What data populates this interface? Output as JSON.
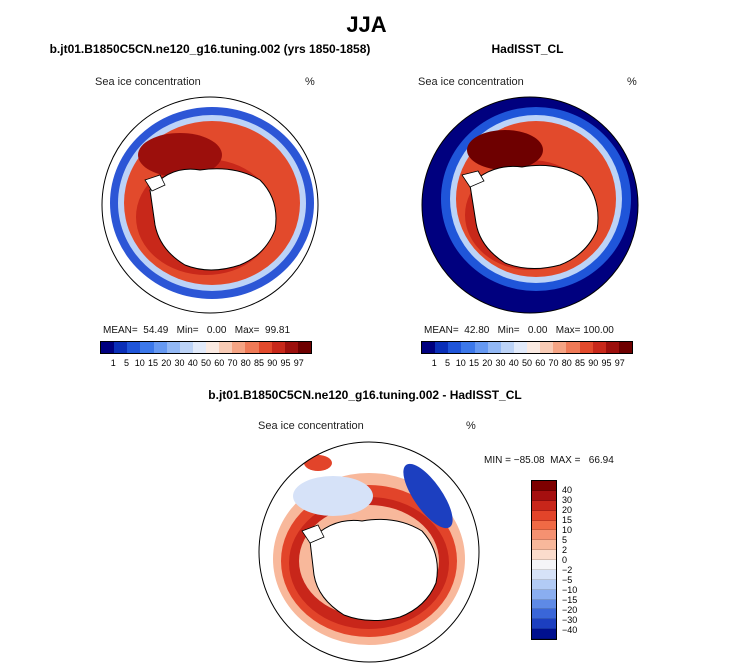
{
  "main_title": "JJA",
  "panel_left": {
    "title": "b.jt01.B1850C5CN.ne120_g16.tuning.002 (yrs 1850-1858)",
    "variable": "Sea ice concentration",
    "unit": "%",
    "stats": "MEAN=  54.49   Min=   0.00   Max=  99.81"
  },
  "panel_right": {
    "title": "HadISST_CL",
    "variable": "Sea ice concentration",
    "unit": "%",
    "stats": "MEAN=  42.80   Min=   0.00   Max= 100.00"
  },
  "panel_diff": {
    "title": "b.jt01.B1850C5CN.ne120_g16.tuning.002 - HadISST_CL",
    "variable": "Sea ice concentration",
    "unit": "%",
    "stats": "MIN = −85.08  MAX =   66.94"
  },
  "colorbar_abs": {
    "labels": [
      "1",
      "5",
      "10",
      "15",
      "20",
      "30",
      "40",
      "50",
      "60",
      "70",
      "80",
      "85",
      "90",
      "95",
      "97"
    ],
    "colors": [
      "#00007f",
      "#0a2fb8",
      "#1f55d9",
      "#3c78ea",
      "#6699f2",
      "#92b8f5",
      "#bcd3f7",
      "#e1eafa",
      "#faeae2",
      "#f8cbb5",
      "#f5a484",
      "#ef7a57",
      "#e24a2c",
      "#c8281a",
      "#9c0f0c",
      "#6e0000"
    ]
  },
  "colorbar_diff": {
    "labels": [
      "40",
      "30",
      "20",
      "15",
      "10",
      "5",
      "2",
      "0",
      "−2",
      "−5",
      "−10",
      "−15",
      "−20",
      "−30",
      "−40"
    ],
    "colors": [
      "#7d0000",
      "#a50f0f",
      "#c8261a",
      "#e2442a",
      "#f06a45",
      "#f59171",
      "#f8b89b",
      "#fbdccc",
      "#f5f5f8",
      "#d6e2f8",
      "#b2cbf5",
      "#8aaef0",
      "#5e8ae6",
      "#3a66d8",
      "#1c3fc0",
      "#00108e"
    ]
  }
}
